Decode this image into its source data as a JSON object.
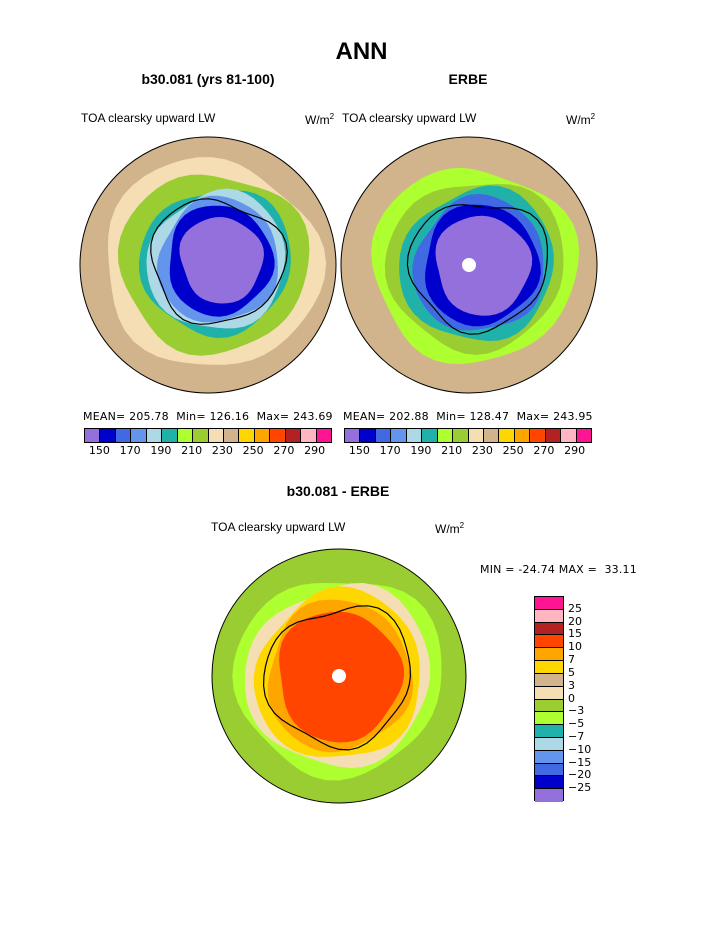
{
  "main_title": "ANN",
  "units_label": "W/m",
  "units_sup": "2",
  "chart_data": [
    {
      "type": "polar-contour",
      "title": "b30.081 (yrs 81-100)",
      "subtitle": "TOA clearsky upward LW",
      "stats": {
        "mean_label": "MEAN=",
        "mean": "205.78",
        "min_label": "Min=",
        "min": "126.16",
        "max_label": "Max=",
        "max": "243.69"
      },
      "levels": [
        150,
        160,
        170,
        180,
        190,
        200,
        210,
        220,
        230,
        240,
        250,
        260,
        270,
        280,
        290
      ],
      "tick_labels": [
        "150",
        "170",
        "190",
        "210",
        "230",
        "250",
        "270",
        "290"
      ],
      "colors": [
        "#9370DB",
        "#0000CD",
        "#4169E1",
        "#6495ED",
        "#ADD8E6",
        "#20B2AA",
        "#ADFF2F",
        "#9ACD32",
        "#F5DEB3",
        "#D2B48C",
        "#FFD700",
        "#FFA500",
        "#FF4500",
        "#B22222",
        "#FFB6C1",
        "#FF1493"
      ],
      "rings": [
        {
          "r": 1.0,
          "color": "#D2B48C"
        },
        {
          "r": 0.83,
          "color": "#F5DEB3"
        },
        {
          "r": 0.72,
          "color": "#9ACD32"
        },
        {
          "r": 0.58,
          "color": "#20B2AA"
        },
        {
          "r": 0.54,
          "color": "#ADD8E6"
        },
        {
          "r": 0.48,
          "color": "#6495ED"
        },
        {
          "r": 0.42,
          "color": "#0000CD"
        },
        {
          "r": 0.33,
          "color": "#9370DB"
        }
      ]
    },
    {
      "type": "polar-contour",
      "title": "ERBE",
      "subtitle": "TOA clearsky upward LW",
      "stats": {
        "mean_label": "MEAN=",
        "mean": "202.88",
        "min_label": "Min=",
        "min": "128.47",
        "max_label": "Max=",
        "max": "243.95"
      },
      "levels": [
        150,
        160,
        170,
        180,
        190,
        200,
        210,
        220,
        230,
        240,
        250,
        260,
        270,
        280,
        290
      ],
      "tick_labels": [
        "150",
        "170",
        "190",
        "210",
        "230",
        "250",
        "270",
        "290"
      ],
      "colors": [
        "#9370DB",
        "#0000CD",
        "#4169E1",
        "#6495ED",
        "#ADD8E6",
        "#20B2AA",
        "#ADFF2F",
        "#9ACD32",
        "#F5DEB3",
        "#D2B48C",
        "#FFD700",
        "#FFA500",
        "#FF4500",
        "#B22222",
        "#FFB6C1",
        "#FF1493"
      ],
      "rings": [
        {
          "r": 1.0,
          "color": "#D2B48C"
        },
        {
          "r": 0.78,
          "color": "#ADFF2F"
        },
        {
          "r": 0.68,
          "color": "#9ACD32"
        },
        {
          "r": 0.6,
          "color": "#20B2AA"
        },
        {
          "r": 0.52,
          "color": "#4169E1"
        },
        {
          "r": 0.46,
          "color": "#0000CD"
        },
        {
          "r": 0.38,
          "color": "#9370DB"
        }
      ]
    },
    {
      "type": "polar-contour",
      "title": "b30.081 - ERBE",
      "subtitle": "TOA clearsky upward LW",
      "minmax": {
        "min_label": "MIN =",
        "min": "-24.74",
        "max_label": "MAX =",
        "max": "33.11"
      },
      "levels": [
        25,
        20,
        15,
        10,
        7,
        5,
        3,
        0,
        -3,
        -5,
        -7,
        -10,
        -15,
        -20,
        -25
      ],
      "level_labels": [
        "25",
        "20",
        "15",
        "10",
        "7",
        "5",
        "3",
        "0",
        "−3",
        "−5",
        "−7",
        "−10",
        "−15",
        "−20",
        "−25"
      ],
      "colors": [
        "#FF1493",
        "#FFB6C1",
        "#B22222",
        "#FF4500",
        "#FFA500",
        "#FFD700",
        "#D2B48C",
        "#F5DEB3",
        "#9ACD32",
        "#ADFF2F",
        "#20B2AA",
        "#ADD8E6",
        "#6495ED",
        "#4169E1",
        "#0000CD",
        "#9370DB"
      ],
      "rings": [
        {
          "r": 1.0,
          "color": "#9ACD32"
        },
        {
          "r": 0.8,
          "color": "#ADFF2F"
        },
        {
          "r": 0.72,
          "color": "#F5DEB3"
        },
        {
          "r": 0.66,
          "color": "#FFD700"
        },
        {
          "r": 0.58,
          "color": "#FFA500"
        },
        {
          "r": 0.5,
          "color": "#FF4500"
        }
      ]
    }
  ]
}
